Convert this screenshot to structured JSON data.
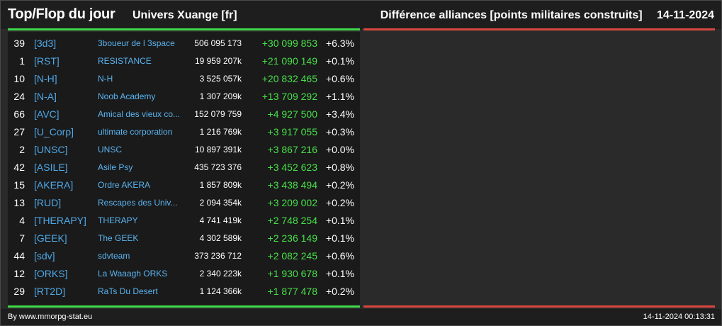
{
  "header": {
    "title": "Top/Flop du jour",
    "universe": "Univers Xuange [fr]",
    "metric": "Différence alliances [points militaires construits]",
    "date": "14-11-2024"
  },
  "colors": {
    "top": "#3fd94a",
    "flop": "#d9473f",
    "tag": "#4fa8e8",
    "gain": "#48e04a"
  },
  "top_rows": [
    {
      "rank": "39",
      "tag": "[3d3]",
      "name": "3boueur de l 3space",
      "total": "506 095 173",
      "diff": "+30 099 853",
      "pct": "+6.3%"
    },
    {
      "rank": "1",
      "tag": "[RST]",
      "name": "RESISTANCE",
      "total": "19 959 207k",
      "diff": "+21 090 149",
      "pct": "+0.1%"
    },
    {
      "rank": "10",
      "tag": "[N-H]",
      "name": "N-H",
      "total": "3 525 057k",
      "diff": "+20 832 465",
      "pct": "+0.6%"
    },
    {
      "rank": "24",
      "tag": "[N-A]",
      "name": "Noob Academy",
      "total": "1 307 209k",
      "diff": "+13 709 292",
      "pct": "+1.1%"
    },
    {
      "rank": "66",
      "tag": "[AVC]",
      "name": "Amical des vieux co...",
      "total": "152 079 759",
      "diff": "+4 927 500",
      "pct": "+3.4%"
    },
    {
      "rank": "27",
      "tag": "[U_Corp]",
      "name": "ultimate corporation",
      "total": "1 216 769k",
      "diff": "+3 917 055",
      "pct": "+0.3%"
    },
    {
      "rank": "2",
      "tag": "[UNSC]",
      "name": "UNSC",
      "total": "10 897 391k",
      "diff": "+3 867 216",
      "pct": "+0.0%"
    },
    {
      "rank": "42",
      "tag": "[ASILE]",
      "name": "Asile Psy",
      "total": "435 723 376",
      "diff": "+3 452 623",
      "pct": "+0.8%"
    },
    {
      "rank": "15",
      "tag": "[AKERA]",
      "name": "Ordre AKERA",
      "total": "1 857 809k",
      "diff": "+3 438 494",
      "pct": "+0.2%"
    },
    {
      "rank": "13",
      "tag": "[RUD]",
      "name": "Rescapes des Univ...",
      "total": "2 094 354k",
      "diff": "+3 209 002",
      "pct": "+0.2%"
    },
    {
      "rank": "4",
      "tag": "[THERAPY]",
      "name": "THERAPY",
      "total": "4 741 419k",
      "diff": "+2 748 254",
      "pct": "+0.1%"
    },
    {
      "rank": "7",
      "tag": "[GEEK]",
      "name": "The GEEK",
      "total": "4 302 589k",
      "diff": "+2 236 149",
      "pct": "+0.1%"
    },
    {
      "rank": "44",
      "tag": "[sdv]",
      "name": "sdvteam",
      "total": "373 236 712",
      "diff": "+2 082 245",
      "pct": "+0.6%"
    },
    {
      "rank": "12",
      "tag": "[ORKS]",
      "name": "La Waaagh ORKS",
      "total": "2 340 223k",
      "diff": "+1 930 678",
      "pct": "+0.1%"
    },
    {
      "rank": "29",
      "tag": "[RT2D]",
      "name": "RaTs Du Desert",
      "total": "1 124 366k",
      "diff": "+1 877 478",
      "pct": "+0.2%"
    }
  ],
  "flop_rows": [],
  "footer": {
    "credit": "By www.mmorpg-stat.eu",
    "timestamp": "14-11-2024 00:13:31"
  }
}
